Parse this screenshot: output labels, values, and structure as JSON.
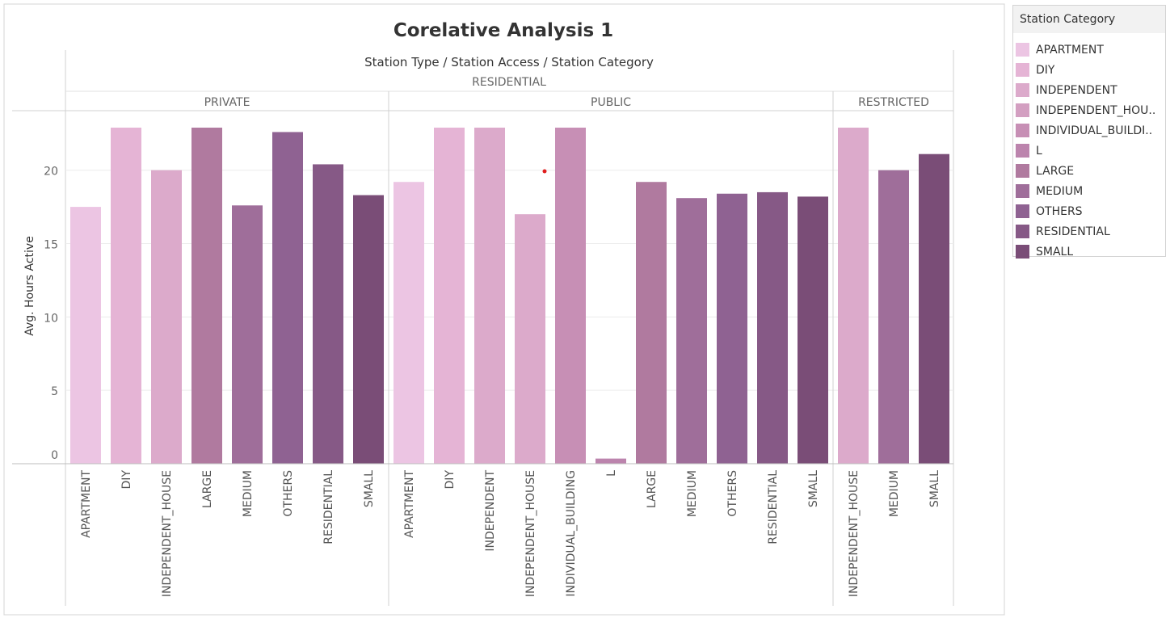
{
  "chart_data": {
    "type": "bar",
    "title": "Corelative Analysis 1",
    "header": "Station Type / Station Access / Station Category",
    "ylabel": "Avg. Hours Active",
    "ylim": [
      0,
      23.5
    ],
    "yticks": [
      0,
      5,
      10,
      15,
      20
    ],
    "grid": true,
    "legend_position": "right",
    "station_type": "RESIDENTIAL",
    "groups": [
      {
        "access": "PRIVATE",
        "bars": [
          {
            "category": "APARTMENT",
            "value": 17.5
          },
          {
            "category": "DIY",
            "value": 22.9
          },
          {
            "category": "INDEPENDENT_HOUSE",
            "value": 20.0
          },
          {
            "category": "LARGE",
            "value": 22.9
          },
          {
            "category": "MEDIUM",
            "value": 17.6
          },
          {
            "category": "OTHERS",
            "value": 22.6
          },
          {
            "category": "RESIDENTIAL",
            "value": 20.4
          },
          {
            "category": "SMALL",
            "value": 18.3
          }
        ]
      },
      {
        "access": "PUBLIC",
        "bars": [
          {
            "category": "APARTMENT",
            "value": 19.2
          },
          {
            "category": "DIY",
            "value": 22.9
          },
          {
            "category": "INDEPENDENT",
            "value": 22.9
          },
          {
            "category": "INDEPENDENT_HOUSE",
            "value": 17.0
          },
          {
            "category": "INDIVIDUAL_BUILDING",
            "value": 22.9
          },
          {
            "category": "L",
            "value": 0.35
          },
          {
            "category": "LARGE",
            "value": 19.2
          },
          {
            "category": "MEDIUM",
            "value": 18.1
          },
          {
            "category": "OTHERS",
            "value": 18.4
          },
          {
            "category": "RESIDENTIAL",
            "value": 18.5
          },
          {
            "category": "SMALL",
            "value": 18.2
          }
        ]
      },
      {
        "access": "RESTRICTED",
        "bars": [
          {
            "category": "INDEPENDENT_HOUSE",
            "value": 22.9
          },
          {
            "category": "MEDIUM",
            "value": 20.0
          },
          {
            "category": "SMALL",
            "value": 21.1
          }
        ]
      }
    ]
  },
  "legend": {
    "title": "Station Category",
    "items": [
      {
        "label": "APARTMENT",
        "color": "#ecc5e3"
      },
      {
        "label": "DIY",
        "color": "#e5b4d5"
      },
      {
        "label": "INDEPENDENT",
        "color": "#dcaacb"
      },
      {
        "label": "INDEPENDENT_HOU..",
        "color": "#d39fc1"
      },
      {
        "label": "INDIVIDUAL_BUILDI..",
        "color": "#c78fb5"
      },
      {
        "label": "L",
        "color": "#bc84ad"
      },
      {
        "label": "LARGE",
        "color": "#b07a9f"
      },
      {
        "label": "MEDIUM",
        "color": "#9f6e9a"
      },
      {
        "label": "OTHERS",
        "color": "#8f6292"
      },
      {
        "label": "RESIDENTIAL",
        "color": "#865986"
      },
      {
        "label": "SMALL",
        "color": "#7a4d77"
      }
    ]
  }
}
